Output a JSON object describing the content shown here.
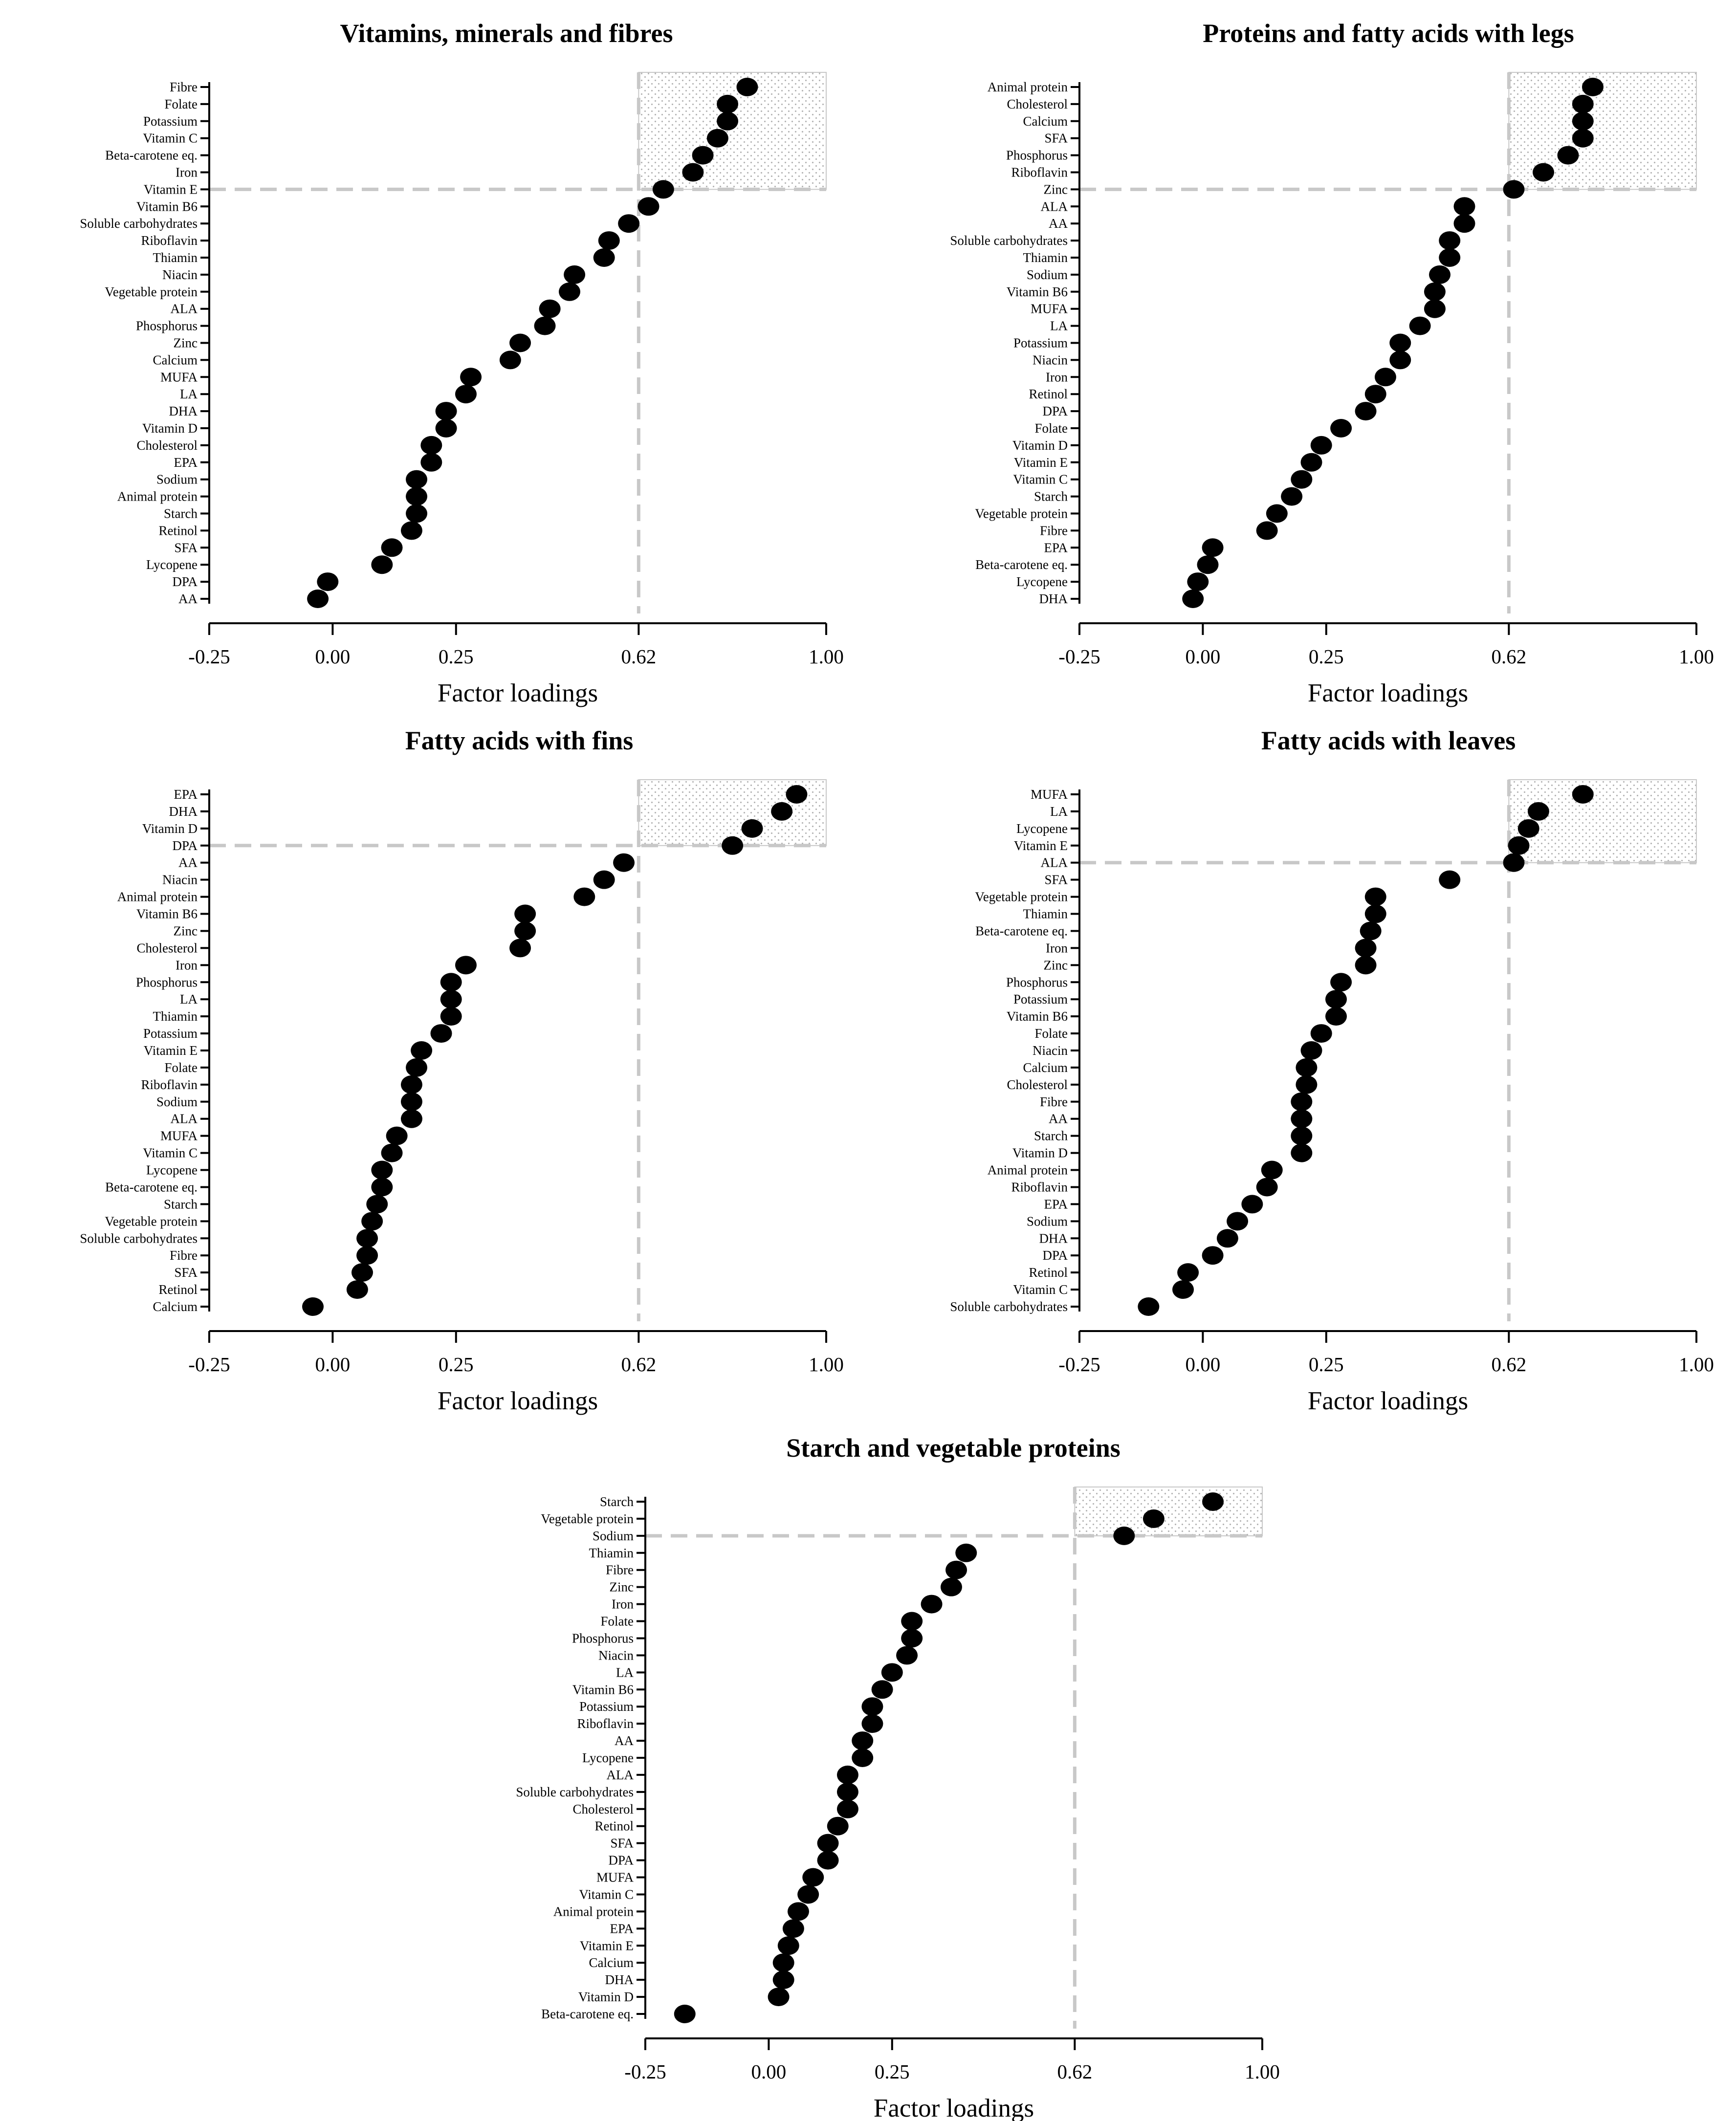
{
  "chart_data": [
    {
      "type": "scatter",
      "title": "Vitamins, minerals and fibres",
      "xlabel": "Factor loadings",
      "ylabel": "",
      "xlim": [
        -0.25,
        1.0
      ],
      "xticks": [
        -0.25,
        0.0,
        0.25,
        0.62,
        1.0
      ],
      "xtick_labels": [
        "-0.25",
        "0.00",
        "0.25",
        "0.62",
        "1.00"
      ],
      "threshold": 0.62,
      "highlight_top_n": 7,
      "categories": [
        "Fibre",
        "Folate",
        "Potassium",
        "Vitamin C",
        "Beta-carotene eq.",
        "Iron",
        "Vitamin E",
        "Vitamin B6",
        "Soluble carbohydrates",
        "Riboflavin",
        "Thiamin",
        "Niacin",
        "Vegetable protein",
        "ALA",
        "Phosphorus",
        "Zinc",
        "Calcium",
        "MUFA",
        "LA",
        "DHA",
        "Vitamin D",
        "Cholesterol",
        "EPA",
        "Sodium",
        "Animal protein",
        "Starch",
        "Retinol",
        "SFA",
        "Lycopene",
        "DPA",
        "AA"
      ],
      "values": [
        0.84,
        0.8,
        0.8,
        0.78,
        0.75,
        0.73,
        0.67,
        0.64,
        0.6,
        0.56,
        0.55,
        0.49,
        0.48,
        0.44,
        0.43,
        0.38,
        0.36,
        0.28,
        0.27,
        0.23,
        0.23,
        0.2,
        0.2,
        0.17,
        0.17,
        0.17,
        0.16,
        0.12,
        0.1,
        -0.01,
        -0.03
      ]
    },
    {
      "type": "scatter",
      "title": "Proteins and fatty acids with legs",
      "xlabel": "Factor loadings",
      "ylabel": "",
      "xlim": [
        -0.25,
        1.0
      ],
      "xticks": [
        -0.25,
        0.0,
        0.25,
        0.62,
        1.0
      ],
      "xtick_labels": [
        "-0.25",
        "0.00",
        "0.25",
        "0.62",
        "1.00"
      ],
      "threshold": 0.62,
      "highlight_top_n": 7,
      "categories": [
        "Animal protein",
        "Cholesterol",
        "Calcium",
        "SFA",
        "Phosphorus",
        "Riboflavin",
        "Zinc",
        "ALA",
        "AA",
        "Soluble carbohydrates",
        "Thiamin",
        "Sodium",
        "Vitamin B6",
        "MUFA",
        "LA",
        "Potassium",
        "Niacin",
        "Iron",
        "Retinol",
        "DPA",
        "Folate",
        "Vitamin D",
        "Vitamin E",
        "Vitamin C",
        "Starch",
        "Vegetable protein",
        "Fibre",
        "EPA",
        "Beta-carotene eq.",
        "Lycopene",
        "DHA"
      ],
      "values": [
        0.79,
        0.77,
        0.77,
        0.77,
        0.74,
        0.69,
        0.63,
        0.53,
        0.53,
        0.5,
        0.5,
        0.48,
        0.47,
        0.47,
        0.44,
        0.4,
        0.4,
        0.37,
        0.35,
        0.33,
        0.28,
        0.24,
        0.22,
        0.2,
        0.18,
        0.15,
        0.13,
        0.02,
        0.01,
        -0.01,
        -0.02
      ]
    },
    {
      "type": "scatter",
      "title": "Fatty acids with fins",
      "xlabel": "Factor loadings",
      "ylabel": "",
      "xlim": [
        -0.25,
        1.0
      ],
      "xticks": [
        -0.25,
        0.0,
        0.25,
        0.62,
        1.0
      ],
      "xtick_labels": [
        "-0.25",
        "0.00",
        "0.25",
        "0.62",
        "1.00"
      ],
      "threshold": 0.62,
      "highlight_top_n": 4,
      "categories": [
        "EPA",
        "DHA",
        "Vitamin D",
        "DPA",
        "AA",
        "Niacin",
        "Animal protein",
        "Vitamin B6",
        "Zinc",
        "Cholesterol",
        "Iron",
        "Phosphorus",
        "LA",
        "Thiamin",
        "Potassium",
        "Vitamin E",
        "Folate",
        "Riboflavin",
        "Sodium",
        "ALA",
        "MUFA",
        "Vitamin C",
        "Lycopene",
        "Beta-carotene eq.",
        "Starch",
        "Vegetable protein",
        "Soluble carbohydrates",
        "Fibre",
        "SFA",
        "Retinol",
        "Calcium"
      ],
      "values": [
        0.94,
        0.91,
        0.85,
        0.81,
        0.59,
        0.55,
        0.51,
        0.39,
        0.39,
        0.38,
        0.27,
        0.24,
        0.24,
        0.24,
        0.22,
        0.18,
        0.17,
        0.16,
        0.16,
        0.16,
        0.13,
        0.12,
        0.1,
        0.1,
        0.09,
        0.08,
        0.07,
        0.07,
        0.06,
        0.05,
        -0.04
      ]
    },
    {
      "type": "scatter",
      "title": "Fatty acids with leaves",
      "xlabel": "Factor loadings",
      "ylabel": "",
      "xlim": [
        -0.25,
        1.0
      ],
      "xticks": [
        -0.25,
        0.0,
        0.25,
        0.62,
        1.0
      ],
      "xtick_labels": [
        "-0.25",
        "0.00",
        "0.25",
        "0.62",
        "1.00"
      ],
      "threshold": 0.62,
      "highlight_top_n": 5,
      "categories": [
        "MUFA",
        "LA",
        "Lycopene",
        "Vitamin E",
        "ALA",
        "SFA",
        "Vegetable protein",
        "Thiamin",
        "Beta-carotene eq.",
        "Iron",
        "Zinc",
        "Phosphorus",
        "Potassium",
        "Vitamin B6",
        "Folate",
        "Niacin",
        "Calcium",
        "Cholesterol",
        "Fibre",
        "AA",
        "Starch",
        "Vitamin D",
        "Animal protein",
        "Riboflavin",
        "EPA",
        "Sodium",
        "DHA",
        "DPA",
        "Retinol",
        "Vitamin C",
        "Soluble carbohydrates"
      ],
      "values": [
        0.77,
        0.68,
        0.66,
        0.64,
        0.63,
        0.5,
        0.35,
        0.35,
        0.34,
        0.33,
        0.33,
        0.28,
        0.27,
        0.27,
        0.24,
        0.22,
        0.21,
        0.21,
        0.2,
        0.2,
        0.2,
        0.2,
        0.14,
        0.13,
        0.1,
        0.07,
        0.05,
        0.02,
        -0.03,
        -0.04,
        -0.11
      ]
    },
    {
      "type": "scatter",
      "title": "Starch and vegetable proteins",
      "xlabel": "Factor loadings",
      "ylabel": "",
      "xlim": [
        -0.25,
        1.0
      ],
      "xticks": [
        -0.25,
        0.0,
        0.25,
        0.62,
        1.0
      ],
      "xtick_labels": [
        "-0.25",
        "0.00",
        "0.25",
        "0.62",
        "1.00"
      ],
      "threshold": 0.62,
      "highlight_top_n": 3,
      "categories": [
        "Starch",
        "Vegetable protein",
        "Sodium",
        "Thiamin",
        "Fibre",
        "Zinc",
        "Iron",
        "Folate",
        "Phosphorus",
        "Niacin",
        "LA",
        "Vitamin B6",
        "Potassium",
        "Riboflavin",
        "AA",
        "Lycopene",
        "ALA",
        "Soluble carbohydrates",
        "Cholesterol",
        "Retinol",
        "SFA",
        "DPA",
        "MUFA",
        "Vitamin C",
        "Animal protein",
        "EPA",
        "Vitamin E",
        "Calcium",
        "DHA",
        "Vitamin D",
        "Beta-carotene eq."
      ],
      "values": [
        0.9,
        0.78,
        0.72,
        0.4,
        0.38,
        0.37,
        0.33,
        0.29,
        0.29,
        0.28,
        0.25,
        0.23,
        0.21,
        0.21,
        0.19,
        0.19,
        0.16,
        0.16,
        0.16,
        0.14,
        0.12,
        0.12,
        0.09,
        0.08,
        0.06,
        0.05,
        0.04,
        0.03,
        0.03,
        0.02,
        -0.17
      ]
    }
  ]
}
